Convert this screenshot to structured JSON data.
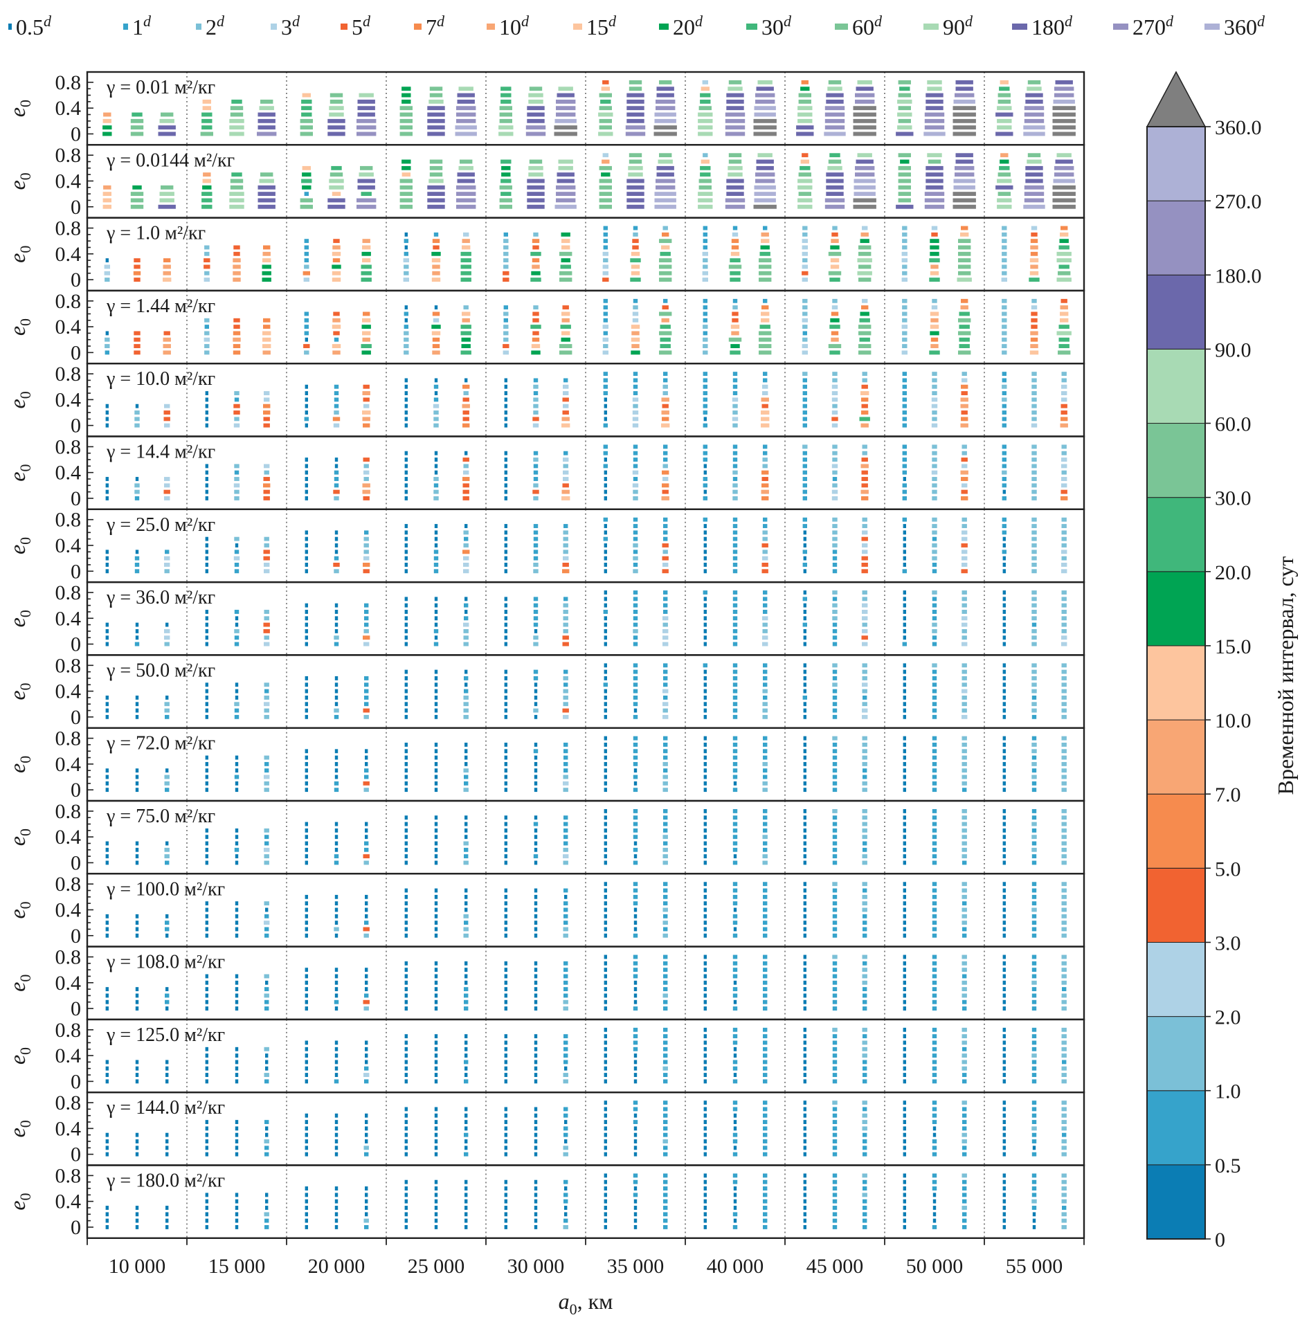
{
  "chart_data": {
    "type": "scatter",
    "xlabel_var": "a",
    "xlabel_sub": "0",
    "xlabel_unit": ", км",
    "ylabel_var": "e",
    "ylabel_sub": "0",
    "xlim": [
      7500,
      57500
    ],
    "ylim": [
      -0.17,
      0.96
    ],
    "x_ticks": [
      10000,
      15000,
      20000,
      25000,
      30000,
      35000,
      40000,
      45000,
      50000,
      55000
    ],
    "x_tick_labels": [
      "10 000",
      "15 000",
      "20 000",
      "25 000",
      "30 000",
      "35 000",
      "40 000",
      "45 000",
      "50 000",
      "55 000"
    ],
    "y_ticks": [
      0,
      0.4,
      0.8
    ],
    "y_tick_labels": [
      "0",
      "0.4",
      "0.8"
    ],
    "x": [
      8500,
      10000,
      11500,
      13500,
      15000,
      16500,
      18500,
      20000,
      21500,
      23500,
      25000,
      26500,
      28500,
      30000,
      31500,
      33500,
      35000,
      36500,
      38500,
      40000,
      41500,
      43500,
      45000,
      46500,
      48500,
      50000,
      51500,
      53500,
      55000,
      56500
    ],
    "e0_values": [
      0,
      0.1,
      0.2,
      0.3,
      0.4,
      0.5,
      0.6,
      0.7,
      0.8
    ],
    "legend": {
      "unit": "d",
      "position": "top",
      "items": [
        {
          "label": "0.5",
          "color": "#0b7db4"
        },
        {
          "label": "1",
          "color": "#36a3cb"
        },
        {
          "label": "2",
          "color": "#7bc0d7"
        },
        {
          "label": "3",
          "color": "#aed2e6"
        },
        {
          "label": "5",
          "color": "#f16331"
        },
        {
          "label": "7",
          "color": "#f68b4e"
        },
        {
          "label": "10",
          "color": "#f8a674"
        },
        {
          "label": "15",
          "color": "#fdc59e"
        },
        {
          "label": "20",
          "color": "#00a453"
        },
        {
          "label": "30",
          "color": "#40b77b"
        },
        {
          "label": "60",
          "color": "#7ac596"
        },
        {
          "label": "90",
          "color": "#a8dab4"
        },
        {
          "label": "180",
          "color": "#6b68ab"
        },
        {
          "label": "270",
          "color": "#9591c1"
        },
        {
          "label": "360",
          "color": "#adb1d6"
        }
      ]
    },
    "over_color": "#7f7f7f",
    "colorbar": {
      "title": "Временной интервал, сут",
      "tick_labels": [
        "0",
        "0.5",
        "1.0",
        "2.0",
        "3.0",
        "5.0",
        "7.0",
        "10.0",
        "15.0",
        "20.0",
        "30.0",
        "60.0",
        "90.0",
        "180.0",
        "270.0",
        "360.0"
      ],
      "extend": "max"
    },
    "panels": [
      {
        "label": "γ = 0.01 м²/кг",
        "columns": [
          "8876",
          "aaa9",
          "ccba",
          "a99977",
          "bbbaa9",
          "dcccba",
          "aaa9997",
          "cccbbaa",
          "dddcccb",
          "aaaaa888",
          "cccccbaa",
          "eedddccb",
          "bbaaa999",
          "ddcccbba",
          "ffedddcb",
          "baaba9a74",
          "ddcccccaa",
          "ffeeddcca",
          "bbbba9973",
          "ddddcccba",
          "fffeeddcb",
          "ccbbbaa85",
          "eddddccba",
          "fffffddcb",
          "cbababa9a",
          "edddcccbb",
          "fffffedcc",
          "cbbcbaa97",
          "eedddccba",
          "fffffeddc"
        ]
      },
      {
        "label": "γ = 0.0144 м²/кг",
        "columns": [
          "7776",
          "aaa8",
          "cbba",
          "999876",
          "bbbaa9",
          "ccccba",
          "aa18987",
          "cc7bba9",
          "dd9ccba",
          "aaaaa788",
          "ccccbaaa",
          "ddddccba",
          "aa9a9889",
          "cccccbba",
          "edddccbb",
          "aaaaa8a63",
          "cccccbbaa",
          "eeeddccba",
          "bbbaa9972",
          "ddcccbbaa",
          "feeeddccb",
          "bbabba974",
          "ddccccba9",
          "ffeeeddcb",
          "caaaaaa8a",
          "dddccccab",
          "fffeeddcc",
          "bbacba986",
          "edddcccba",
          "ffffeddcb"
        ]
      },
      {
        "label": "γ = 1.0 м²/кг",
        "columns": [
          "2330",
          "4544",
          "7665",
          "324422",
          "666644",
          "888765",
          "3521111",
          "7785764",
          "9997876",
          "32231010",
          "76678451",
          "99999763",
          "44222221",
          "98659452",
          "aa98a778",
          "433231111",
          "977974421",
          "aaaa97a52",
          "332231111",
          "99a975531",
          "aaaa98761",
          "343233322",
          "9a77a8642",
          "ababaa863",
          "322332222",
          "976988843",
          "baaaaaa75",
          "322222222",
          "976756543",
          "ba9bb9875"
        ]
      },
      {
        "label": "γ = 1.44 м²/кг",
        "columns": [
          "1220",
          "4444",
          "6664",
          "223212",
          "556544",
          "677755",
          "2401111",
          "6714764",
          "8967875",
          "22221010",
          "65578350",
          "98899672",
          "34222121",
          "87549442",
          "aa879674",
          "323131111",
          "867673321",
          "a99a96a41",
          "222121111",
          "98a674421",
          "aaaa97751",
          "332123222",
          "9a6598532",
          "aa9aa9853",
          "322232222",
          "965876732",
          "a99a9a965",
          "222222222",
          "765644432",
          "a99b97764"
        ]
      },
      {
        "label": "γ = 10.0 м²/кг",
        "columns": [
          "0000",
          "2220",
          "3443",
          "000000",
          "324412",
          "445533",
          "0100000",
          "3521111",
          "5673464",
          "00000000",
          "22231010",
          "54464250",
          "00000000",
          "34222121",
          "76434331",
          "100001111",
          "333231111",
          "756462211",
          "101111111",
          "232231111",
          "777463311",
          "111111112",
          "343233322",
          "695457422",
          "111111111",
          "322332222",
          "654664532",
          "111121211",
          "322222222",
          "654433322"
        ]
      },
      {
        "label": "γ = 14.4 м²/кг",
        "columns": [
          "0000",
          "1220",
          "3433",
          "000000",
          "223212",
          "445423",
          "0000000",
          "2411100",
          "4662324",
          "00000000",
          "22120000",
          "44453240",
          "00000000",
          "24211121",
          "76433231",
          "000001011",
          "223131111",
          "645352111",
          "101100111",
          "222121111",
          "565452211",
          "111111112",
          "332123222",
          "564446422",
          "111011111",
          "222232222",
          "543563422",
          "101121111",
          "222222222",
          "543323322"
        ]
      },
      {
        "label": "γ = 25.0 м²/кг",
        "columns": [
          "0000",
          "1110",
          "2331",
          "000000",
          "113102",
          "334422",
          "0000000",
          "2410000",
          "4532221",
          "00000000",
          "11110000",
          "33352120",
          "00000000",
          "22111111",
          "54322221",
          "000001001",
          "212121111",
          "434241111",
          "000000001",
          "111111111",
          "443242211",
          "010100011",
          "111122222",
          "444334322",
          "100000001",
          "112221222",
          "433343322",
          "000100111",
          "222222222",
          "332322222"
        ]
      },
      {
        "label": "γ = 36.0 м²/кг",
        "columns": [
          "0000",
          "1000",
          "2330",
          "000000",
          "112001",
          "324422",
          "0000000",
          "1200000",
          "3521111",
          "00000000",
          "10100000",
          "22231010",
          "00000000",
          "22011111",
          "44222221",
          "000001000",
          "112111111",
          "333231111",
          "000000001",
          "111111111",
          "332231111",
          "000100010",
          "111122212",
          "343233322",
          "100000000",
          "112211112",
          "322332222",
          "000000000",
          "222122222",
          "332222222"
        ]
      },
      {
        "label": "γ = 50.0 м²/кг",
        "columns": [
          "0000",
          "0000",
          "1220",
          "000000",
          "112000",
          "223212",
          "0000000",
          "1200000",
          "2411111",
          "00000000",
          "00000000",
          "22221010",
          "00000000",
          "02000011",
          "34222121",
          "000001000",
          "101111111",
          "323131111",
          "000000001",
          "111111111",
          "222121111",
          "000100000",
          "111112112",
          "332123222",
          "000000000",
          "111111112",
          "322232222",
          "000000000",
          "122122222",
          "222222222"
        ]
      },
      {
        "label": "γ = 72.0 м²/кг",
        "columns": [
          "0000",
          "0000",
          "1220",
          "000000",
          "001000",
          "223112",
          "0000000",
          "1100000",
          "2411000",
          "00000000",
          "00000000",
          "21120000",
          "00000000",
          "00000010",
          "23211111",
          "000000000",
          "101011111",
          "222121111",
          "000000000",
          "101111111",
          "221121111",
          "000000000",
          "111111112",
          "221122222",
          "000000000",
          "111111111",
          "122222222",
          "000000000",
          "112121221",
          "222222222"
        ]
      },
      {
        "label": "γ = 75.0 м²/кг",
        "columns": [
          "0000",
          "0000",
          "1220",
          "000000",
          "001000",
          "223112",
          "0000000",
          "1100000",
          "2411000",
          "00000000",
          "00000000",
          "21120000",
          "00000000",
          "01000010",
          "23211111",
          "000000000",
          "101011111",
          "222121111",
          "000000000",
          "101111111",
          "221121111",
          "000000000",
          "111111112",
          "221122222",
          "000000000",
          "111111111",
          "122222222",
          "000000000",
          "112121211",
          "222222222"
        ]
      },
      {
        "label": "γ = 100.0 м²/кг",
        "columns": [
          "0000",
          "0000",
          "0110",
          "000000",
          "000000",
          "113102",
          "0000000",
          "0200000",
          "2410000",
          "00000000",
          "00000000",
          "22120000",
          "00000000",
          "00000000",
          "22111101",
          "000000000",
          "100001111",
          "212121111",
          "000000000",
          "101101111",
          "111111111",
          "000000000",
          "111111112",
          "111122212",
          "000000000",
          "111111111",
          "112221222",
          "000000000",
          "111121111",
          "222222222"
        ]
      },
      {
        "label": "γ = 108.0 м²/кг",
        "columns": [
          "0000",
          "0000",
          "0110",
          "000000",
          "000000",
          "112102",
          "0000000",
          "0100000",
          "2410000",
          "00000000",
          "00000000",
          "11110000",
          "00000000",
          "00000000",
          "22111111",
          "000000000",
          "100001111",
          "112111111",
          "000000000",
          "101101111",
          "111111111",
          "000000000",
          "111111112",
          "111122212",
          "000000000",
          "111111111",
          "112221222",
          "000000000",
          "111121111",
          "222122222"
        ]
      },
      {
        "label": "γ = 125.0 м²/кг",
        "columns": [
          "0000",
          "0000",
          "0000",
          "000000",
          "000000",
          "120002",
          "0000000",
          "1000000",
          "1310000",
          "00000000",
          "00000000",
          "10010000",
          "00000000",
          "00000000",
          "22011111",
          "000000000",
          "000001111",
          "112111111",
          "000000000",
          "101100111",
          "111111111",
          "000000000",
          "111111112",
          "111122212",
          "000000000",
          "111111111",
          "112221222",
          "000000000",
          "111121111",
          "222122222"
        ]
      },
      {
        "label": "γ = 144.0 м²/кг",
        "columns": [
          "0000",
          "0000",
          "0000",
          "000000",
          "000000",
          "112001",
          "0000000",
          "0000000",
          "1200000",
          "00000000",
          "00000000",
          "10010000",
          "00000000",
          "00000000",
          "22011011",
          "000000000",
          "000001011",
          "112111111",
          "000000000",
          "101100011",
          "111111111",
          "000000000",
          "111111112",
          "111122212",
          "000000000",
          "111001111",
          "112211112",
          "000000000",
          "101121111",
          "222122222"
        ]
      },
      {
        "label": "γ = 180.0 м²/кг",
        "columns": [
          "0000",
          "0000",
          "0000",
          "000000",
          "000000",
          "112000",
          "0000000",
          "0000000",
          "1200000",
          "00000000",
          "00000000",
          "00000000",
          "00000000",
          "00000000",
          "21001101",
          "000000000",
          "000001011",
          "111111111",
          "000000000",
          "101000011",
          "111111111",
          "000000000",
          "111111111",
          "111112112",
          "000000000",
          "100000111",
          "111211112",
          "000000000",
          "000121111",
          "222122222"
        ]
      }
    ]
  }
}
